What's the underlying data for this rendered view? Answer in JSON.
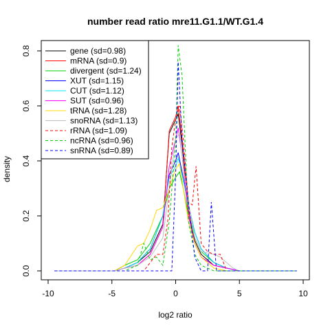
{
  "chart_data": {
    "type": "line",
    "title": "number read ratio mre11.G1.1/WT.G1.4",
    "xlabel": "log2 ratio",
    "ylabel": "density",
    "xlim": [
      -10,
      10
    ],
    "ylim": [
      0,
      0.85
    ],
    "xticks": [
      -10,
      -5,
      0,
      5,
      10
    ],
    "yticks": [
      0.0,
      0.2,
      0.4,
      0.6,
      0.8
    ],
    "xtick_labels": [
      "-10",
      "-5",
      "0",
      "5",
      "10"
    ],
    "ytick_labels": [
      "0.0",
      "0.2",
      "0.4",
      "0.6",
      "0.8"
    ],
    "legend_position": "top-left",
    "series": [
      {
        "name": "gene (sd=0.98)",
        "color": "#000000",
        "dash": "solid",
        "x": [
          -9.5,
          -4.8,
          -4,
          -3,
          -2,
          -1,
          -0.5,
          0,
          0.2,
          0.5,
          1,
          1.5,
          2,
          3,
          4,
          5,
          6,
          9.5
        ],
        "y": [
          0,
          0,
          0.01,
          0.03,
          0.07,
          0.17,
          0.5,
          0.55,
          0.57,
          0.46,
          0.22,
          0.11,
          0.06,
          0.02,
          0.01,
          0,
          0,
          0
        ]
      },
      {
        "name": "mRNA (sd=0.9)",
        "color": "#ff0000",
        "dash": "solid",
        "x": [
          -9.5,
          -4.8,
          -4,
          -3,
          -2,
          -1,
          -0.5,
          0,
          0.2,
          0.5,
          1,
          1.5,
          2,
          3,
          4,
          5,
          9.5
        ],
        "y": [
          0,
          0,
          0.01,
          0.02,
          0.06,
          0.16,
          0.51,
          0.56,
          0.6,
          0.48,
          0.22,
          0.1,
          0.05,
          0.02,
          0.01,
          0,
          0
        ]
      },
      {
        "name": "divergent (sd=1.24)",
        "color": "#00cd00",
        "dash": "solid",
        "x": [
          -9.5,
          -4.8,
          -4,
          -3,
          -2,
          -1,
          -0.5,
          0,
          0.3,
          0.6,
          1,
          1.5,
          2,
          3,
          4,
          5,
          9.5
        ],
        "y": [
          0,
          0,
          0.02,
          0.04,
          0.1,
          0.2,
          0.3,
          0.34,
          0.36,
          0.3,
          0.2,
          0.12,
          0.07,
          0.03,
          0.01,
          0,
          0
        ]
      },
      {
        "name": "XUT (sd=1.15)",
        "color": "#0000ff",
        "dash": "solid",
        "x": [
          -9.5,
          -4.8,
          -4,
          -3,
          -2,
          -1,
          -0.5,
          0,
          0.2,
          0.5,
          1,
          1.5,
          2,
          3,
          4,
          5,
          9.5
        ],
        "y": [
          0,
          0,
          0.01,
          0.03,
          0.08,
          0.2,
          0.35,
          0.4,
          0.43,
          0.36,
          0.24,
          0.14,
          0.08,
          0.03,
          0.01,
          0,
          0
        ]
      },
      {
        "name": "CUT (sd=1.12)",
        "color": "#00e5ee",
        "dash": "solid",
        "x": [
          -9.5,
          -4.8,
          -4,
          -3,
          -2,
          -1,
          -0.5,
          0,
          0.2,
          0.5,
          1,
          1.5,
          2,
          3,
          4,
          5,
          9.5
        ],
        "y": [
          0,
          0,
          0.01,
          0.03,
          0.08,
          0.2,
          0.34,
          0.38,
          0.41,
          0.35,
          0.24,
          0.14,
          0.08,
          0.03,
          0.01,
          0,
          0
        ]
      },
      {
        "name": "SUT (sd=0.96)",
        "color": "#ff00ff",
        "dash": "solid",
        "x": [
          -9.5,
          -4.8,
          -4,
          -3,
          -2,
          -1,
          -0.5,
          0,
          0.2,
          0.5,
          1,
          1.5,
          2,
          3,
          4,
          5,
          9.5
        ],
        "y": [
          0,
          0,
          0.01,
          0.02,
          0.06,
          0.16,
          0.38,
          0.48,
          0.52,
          0.42,
          0.2,
          0.1,
          0.05,
          0.02,
          0.01,
          0,
          0
        ]
      },
      {
        "name": "tRNA (sd=1.28)",
        "color": "#ffd700",
        "dash": "solid",
        "x": [
          -9.5,
          -4.8,
          -4,
          -3,
          -2.5,
          -2,
          -1.5,
          -1,
          -0.5,
          0,
          0.3,
          0.6,
          1,
          1.5,
          2,
          3,
          4,
          9.5
        ],
        "y": [
          0,
          0,
          0.02,
          0.09,
          0.1,
          0.15,
          0.22,
          0.23,
          0.3,
          0.37,
          0.39,
          0.3,
          0.18,
          0.1,
          0.05,
          0.01,
          0,
          0
        ]
      },
      {
        "name": "snoRNA (sd=1.13)",
        "color": "#bebebe",
        "dash": "solid",
        "x": [
          -9.5,
          -4.8,
          -4,
          -3,
          -2,
          -1,
          -0.5,
          0,
          0.3,
          0.6,
          1,
          1.5,
          2,
          3,
          3.5,
          4,
          4.5,
          5,
          9.5
        ],
        "y": [
          0,
          0,
          0.01,
          0.02,
          0.05,
          0.12,
          0.3,
          0.48,
          0.5,
          0.38,
          0.25,
          0.12,
          0.07,
          0.06,
          0.05,
          0.03,
          0.01,
          0,
          0
        ]
      },
      {
        "name": "rRNA (sd=1.09)",
        "color": "#ff0000",
        "dash": "dashed",
        "x": [
          -9.5,
          -2.5,
          -1.5,
          -1,
          -0.6,
          -0.3,
          0,
          0.3,
          0.6,
          1,
          1.3,
          1.6,
          2,
          2.5,
          3,
          3.5,
          4,
          9.5
        ],
        "y": [
          0,
          0,
          0.06,
          0.06,
          0.19,
          0.45,
          0.55,
          0.6,
          0.48,
          0.25,
          0.24,
          0.38,
          0.1,
          0.07,
          0.06,
          0.06,
          0,
          0
        ]
      },
      {
        "name": "ncRNA (sd=0.96)",
        "color": "#00cd00",
        "dash": "dashed",
        "x": [
          -9.5,
          -4,
          -3,
          -2.5,
          -2,
          -1.5,
          -1,
          -0.5,
          0,
          0.2,
          0.5,
          0.8,
          1,
          1.5,
          2,
          2.5,
          3,
          9.5
        ],
        "y": [
          0,
          0,
          0.02,
          0.1,
          0.04,
          0.05,
          0.02,
          0.18,
          0.47,
          0.82,
          0.71,
          0.4,
          0.18,
          0.06,
          0.02,
          0.01,
          0,
          0
        ]
      },
      {
        "name": "snRNA (sd=0.89)",
        "color": "#0000ff",
        "dash": "dashed",
        "x": [
          -9.5,
          -0.3,
          0,
          0.2,
          0.5,
          1,
          1.5,
          2,
          2.5,
          2.8,
          3.2,
          3.5,
          4,
          9.5
        ],
        "y": [
          0,
          0,
          0.35,
          0.76,
          0.48,
          0.25,
          0.05,
          0,
          0,
          0.25,
          0,
          0,
          0,
          0
        ]
      }
    ]
  }
}
